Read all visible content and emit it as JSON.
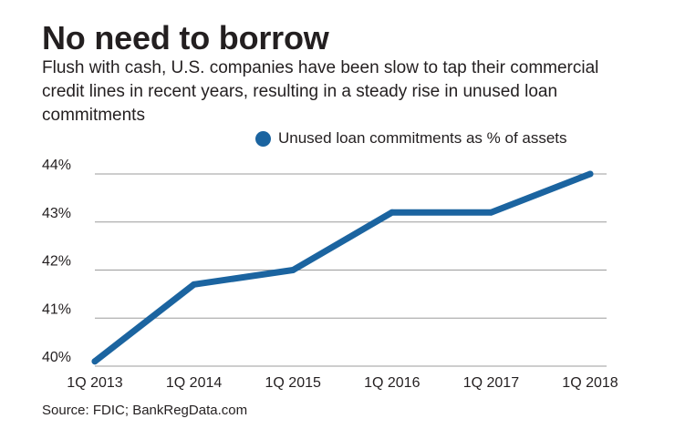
{
  "header": {
    "title": "No need to borrow",
    "subtitle": "Flush with cash, U.S. companies have been slow to tap their commercial credit lines in recent years, resulting in a steady rise in unused loan commitments"
  },
  "footer": {
    "source": "Source: FDIC; BankRegData.com"
  },
  "colors": {
    "series": "#1b64a0",
    "grid": "#9b9b9b",
    "text": "#231f20"
  },
  "chart_data": {
    "type": "line",
    "categories": [
      "1Q 2013",
      "1Q 2014",
      "1Q 2015",
      "1Q 2016",
      "1Q 2017",
      "1Q 2018"
    ],
    "series": [
      {
        "name": "Unused loan commitments as % of assets",
        "values": [
          40.1,
          41.7,
          42.0,
          43.2,
          43.2,
          44.0
        ]
      }
    ],
    "yticks": [
      "40%",
      "41%",
      "42%",
      "43%",
      "44%"
    ],
    "ylim": [
      40,
      44
    ],
    "grid": true,
    "legend_position": "top"
  }
}
